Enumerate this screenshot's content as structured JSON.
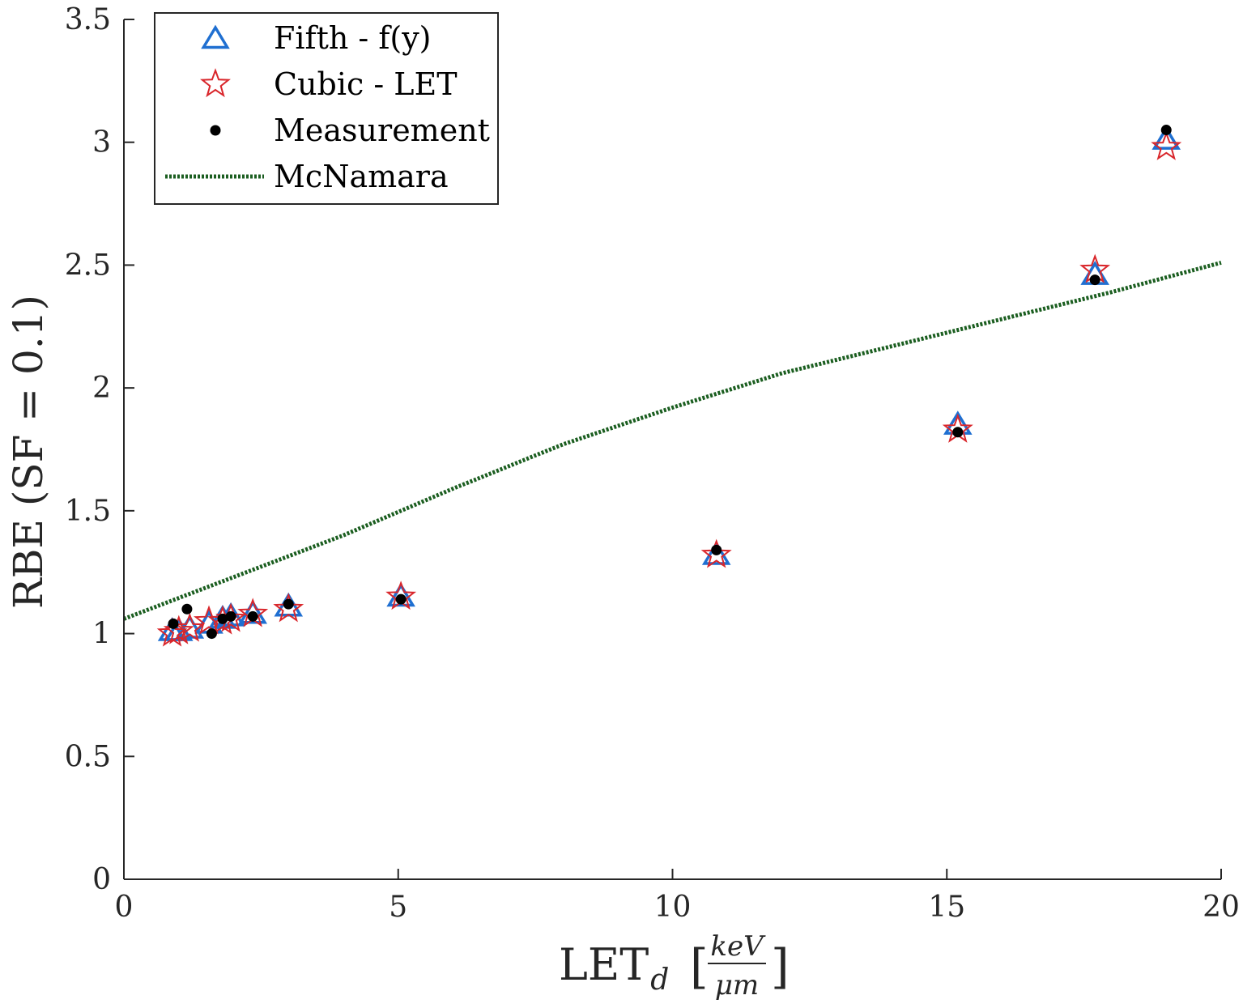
{
  "chart_data": {
    "type": "scatter",
    "xlabel": {
      "main": "LET",
      "subscript": "d",
      "unit_numerator": "keV",
      "unit_denominator": "μm"
    },
    "ylabel": "RBE (SF = 0.1)",
    "xlim": [
      0,
      20
    ],
    "ylim": [
      0,
      3.5
    ],
    "xticks": [
      0,
      5,
      10,
      15,
      20
    ],
    "xtick_labels": [
      "0",
      "5",
      "10",
      "15",
      "20"
    ],
    "yticks": [
      0,
      0.5,
      1,
      1.5,
      2,
      2.5,
      3,
      3.5
    ],
    "ytick_labels": [
      "0",
      "0.5",
      "1",
      "1.5",
      "2",
      "2.5",
      "3",
      "3.5"
    ],
    "grid": false,
    "legend_position": "top-left",
    "series": [
      {
        "name": "Fifth - f(y)",
        "marker": "triangle",
        "color": "#1f6fd1",
        "x": [
          0.88,
          1.0,
          1.2,
          1.55,
          1.8,
          1.95,
          2.35,
          3.0,
          5.05,
          10.8,
          15.2,
          17.7,
          19.0
        ],
        "y": [
          1.01,
          1.01,
          1.02,
          1.04,
          1.06,
          1.07,
          1.08,
          1.11,
          1.15,
          1.32,
          1.85,
          2.46,
          3.01
        ]
      },
      {
        "name": "Cubic - LET",
        "marker": "star",
        "color": "#d9262b",
        "x": [
          0.88,
          1.0,
          1.2,
          1.55,
          1.8,
          1.95,
          2.35,
          3.0,
          5.05,
          10.8,
          15.2,
          17.7,
          19.0
        ],
        "y": [
          1.0,
          1.01,
          1.02,
          1.05,
          1.05,
          1.06,
          1.08,
          1.1,
          1.15,
          1.32,
          1.83,
          2.48,
          2.98
        ]
      },
      {
        "name": "Measurement",
        "marker": "dot",
        "color": "#000000",
        "x": [
          0.9,
          1.15,
          1.6,
          1.8,
          1.95,
          2.35,
          3.0,
          5.05,
          10.8,
          15.2,
          17.7,
          19.0
        ],
        "y": [
          1.04,
          1.1,
          1.0,
          1.06,
          1.07,
          1.07,
          1.12,
          1.14,
          1.34,
          1.82,
          2.44,
          3.05
        ]
      },
      {
        "name": "McNamara",
        "marker": "line-dotted",
        "color": "#1b5e20",
        "x": [
          0,
          2,
          4,
          6,
          8,
          10,
          12,
          14,
          16,
          18,
          20
        ],
        "y": [
          1.06,
          1.23,
          1.4,
          1.59,
          1.77,
          1.92,
          2.06,
          2.17,
          2.28,
          2.39,
          2.51
        ]
      }
    ]
  }
}
